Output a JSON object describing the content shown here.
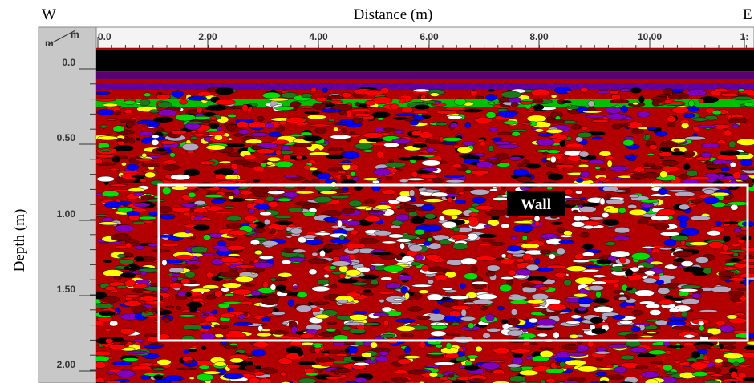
{
  "header": {
    "west": "W",
    "title": "Distance (m)",
    "east": "E"
  },
  "x_axis": {
    "unit_top": "m",
    "unit_bottom": "m",
    "ticks": [
      "0.0",
      "2.00",
      "4.00",
      "6.00",
      "8.00",
      "10.00",
      "1:"
    ]
  },
  "y_axis": {
    "title": "Depth (m)",
    "ticks": [
      "0.0",
      "0.50",
      "1.00",
      "1.50",
      "2.00"
    ]
  },
  "annotation": {
    "label": "Wall"
  }
}
